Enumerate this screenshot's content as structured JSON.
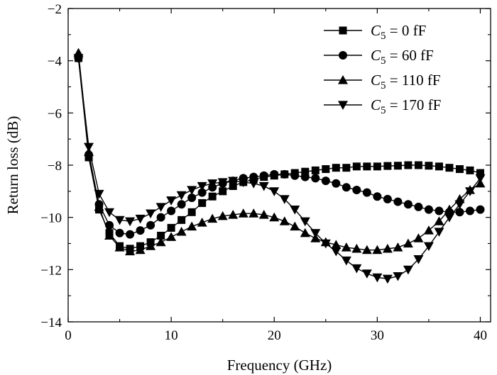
{
  "chart_data": {
    "type": "line",
    "xlabel": "Frequency (GHz)",
    "ylabel": "Return loss (dB)",
    "xlim": [
      0,
      41
    ],
    "ylim": [
      -14,
      -2
    ],
    "xticks": [
      0,
      10,
      20,
      30,
      40
    ],
    "yticks": [
      -14,
      -12,
      -10,
      -8,
      -6,
      -4,
      -2
    ],
    "xtick_labels": [
      "0",
      "10",
      "20",
      "30",
      "40"
    ],
    "ytick_labels": [
      "−14",
      "−12",
      "−10",
      "−8",
      "−6",
      "−4",
      "−2"
    ],
    "legend_position": "top-right",
    "grid": false,
    "x": [
      1,
      2,
      3,
      4,
      5,
      6,
      7,
      8,
      9,
      10,
      11,
      12,
      13,
      14,
      15,
      16,
      17,
      18,
      19,
      20,
      21,
      22,
      23,
      24,
      25,
      26,
      27,
      28,
      29,
      30,
      31,
      32,
      33,
      34,
      35,
      36,
      37,
      38,
      39,
      40
    ],
    "series": [
      {
        "name": "C5 = 0 fF",
        "legend_label": {
          "symbol": "C",
          "subscript": "5",
          "value": " = 0 fF"
        },
        "marker": "square",
        "values": [
          -3.9,
          -7.7,
          -9.7,
          -10.6,
          -11.1,
          -11.2,
          -11.1,
          -10.95,
          -10.7,
          -10.4,
          -10.1,
          -9.8,
          -9.45,
          -9.2,
          -9.0,
          -8.8,
          -8.65,
          -8.55,
          -8.45,
          -8.4,
          -8.35,
          -8.3,
          -8.25,
          -8.2,
          -8.15,
          -8.1,
          -8.1,
          -8.05,
          -8.05,
          -8.05,
          -8.03,
          -8.02,
          -8.0,
          -8.0,
          -8.02,
          -8.05,
          -8.1,
          -8.15,
          -8.2,
          -8.3
        ]
      },
      {
        "name": "C5 = 60 fF",
        "legend_label": {
          "symbol": "C",
          "subscript": "5",
          "value": " = 60 fF"
        },
        "marker": "circle",
        "values": [
          -3.9,
          -7.6,
          -9.5,
          -10.3,
          -10.6,
          -10.65,
          -10.5,
          -10.3,
          -10.0,
          -9.75,
          -9.5,
          -9.25,
          -9.05,
          -8.85,
          -8.7,
          -8.6,
          -8.5,
          -8.45,
          -8.4,
          -8.35,
          -8.35,
          -8.4,
          -8.45,
          -8.5,
          -8.6,
          -8.7,
          -8.85,
          -8.95,
          -9.05,
          -9.2,
          -9.3,
          -9.4,
          -9.5,
          -9.6,
          -9.7,
          -9.75,
          -9.8,
          -9.8,
          -9.75,
          -9.7
        ]
      },
      {
        "name": "C5 = 110 fF",
        "legend_label": {
          "symbol": "C",
          "subscript": "5",
          "value": " = 110 fF"
        },
        "marker": "triangle-up",
        "values": [
          -3.7,
          -7.5,
          -9.6,
          -10.7,
          -11.15,
          -11.3,
          -11.25,
          -11.1,
          -10.95,
          -10.75,
          -10.55,
          -10.35,
          -10.2,
          -10.05,
          -9.95,
          -9.9,
          -9.85,
          -9.85,
          -9.9,
          -10.0,
          -10.15,
          -10.35,
          -10.6,
          -10.8,
          -10.95,
          -11.05,
          -11.15,
          -11.2,
          -11.25,
          -11.25,
          -11.2,
          -11.15,
          -11.0,
          -10.8,
          -10.5,
          -10.15,
          -9.7,
          -9.3,
          -8.95,
          -8.7
        ]
      },
      {
        "name": "C5 = 170 fF",
        "legend_label": {
          "symbol": "C",
          "subscript": "5",
          "value": " = 170 fF"
        },
        "marker": "triangle-down",
        "values": [
          -3.9,
          -7.3,
          -9.1,
          -9.8,
          -10.1,
          -10.15,
          -10.05,
          -9.85,
          -9.6,
          -9.35,
          -9.15,
          -8.95,
          -8.8,
          -8.7,
          -8.65,
          -8.6,
          -8.65,
          -8.7,
          -8.8,
          -9.0,
          -9.3,
          -9.7,
          -10.15,
          -10.6,
          -11.0,
          -11.3,
          -11.65,
          -11.95,
          -12.15,
          -12.3,
          -12.35,
          -12.25,
          -12.0,
          -11.6,
          -11.1,
          -10.55,
          -10.0,
          -9.5,
          -9.0,
          -8.5
        ]
      }
    ]
  }
}
